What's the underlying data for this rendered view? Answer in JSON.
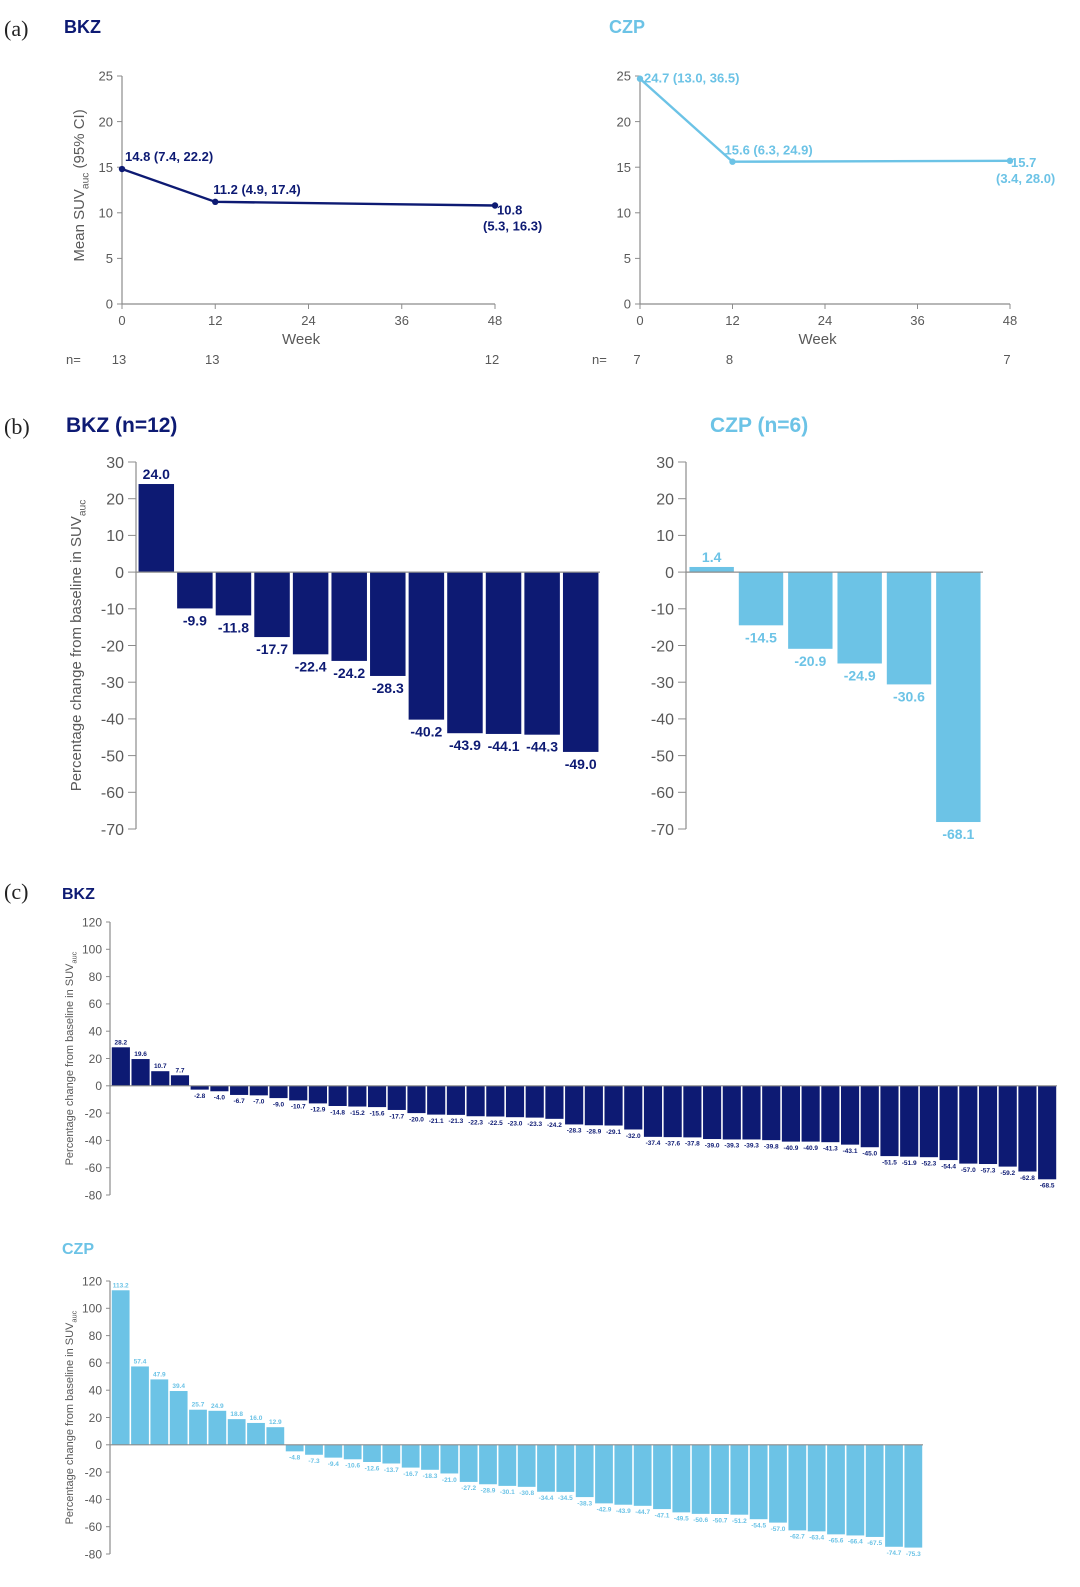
{
  "colors": {
    "bkz": "#0d1a73",
    "czp": "#6cc3e6",
    "axis": "#8c8c8c",
    "text": "#595959"
  },
  "panel_labels": {
    "a": "(a)",
    "b": "(b)",
    "c": "(c)"
  },
  "chart_data": [
    {
      "id": "a_bkz",
      "type": "line",
      "series_color": "bkz",
      "title": "BKZ",
      "xlabel": "Week",
      "ylabel_main": "Mean SUV",
      "ylabel_sub": "auc",
      "ylabel_tail": " (95% CI)",
      "xlim": [
        0,
        48
      ],
      "xticks": [
        0,
        12,
        24,
        36,
        48
      ],
      "ylim": [
        0,
        25
      ],
      "yticks": [
        0,
        5,
        10,
        15,
        20,
        25
      ],
      "x": [
        0,
        12,
        48
      ],
      "y": [
        14.8,
        11.2,
        10.8
      ],
      "labels": [
        "14.8 (7.4, 22.2)",
        "11.2 (4.9, 17.4)",
        "10.8\n(5.3, 16.3)"
      ],
      "n_label": "n=",
      "n_x": [
        0,
        12,
        48
      ],
      "n_values": [
        "13",
        "13",
        "12"
      ]
    },
    {
      "id": "a_czp",
      "type": "line",
      "series_color": "czp",
      "title": "CZP",
      "xlabel": "Week",
      "xlim": [
        0,
        48
      ],
      "xticks": [
        0,
        12,
        24,
        36,
        48
      ],
      "ylim": [
        0,
        25
      ],
      "yticks": [
        0,
        5,
        10,
        15,
        20,
        25
      ],
      "x": [
        0,
        12,
        48
      ],
      "y": [
        24.7,
        15.6,
        15.7
      ],
      "labels": [
        "24.7 (13.0, 36.5)",
        "15.6 (6.3, 24.9)",
        "15.7\n(3.4, 28.0)"
      ],
      "n_label": "n=",
      "n_x": [
        0,
        12,
        48
      ],
      "n_values": [
        "7",
        "8",
        "7"
      ]
    },
    {
      "id": "b_bkz",
      "type": "bar",
      "series_color": "bkz",
      "title": "BKZ (n=12)",
      "ylabel_main": "Percentage change from baseline in SUV",
      "ylabel_sub": "auc",
      "ylim": [
        -70,
        30
      ],
      "yticks": [
        30,
        20,
        10,
        0,
        -10,
        -20,
        -30,
        -40,
        -50,
        -60,
        -70
      ],
      "values": [
        24.0,
        -9.9,
        -11.8,
        -17.7,
        -22.4,
        -24.2,
        -28.3,
        -40.2,
        -43.9,
        -44.1,
        -44.3,
        -49.0
      ]
    },
    {
      "id": "b_czp",
      "type": "bar",
      "series_color": "czp",
      "title": "CZP (n=6)",
      "ylim": [
        -70,
        30
      ],
      "yticks": [
        30,
        20,
        10,
        0,
        -10,
        -20,
        -30,
        -40,
        -50,
        -60,
        -70
      ],
      "values": [
        1.4,
        -14.5,
        -20.9,
        -24.9,
        -30.6,
        -68.1
      ]
    },
    {
      "id": "c_bkz",
      "type": "bar",
      "series_color": "bkz",
      "title": "BKZ",
      "ylabel_main": "Percentage change from baseline in SUV",
      "ylabel_sub": "auc",
      "ylim": [
        -80,
        120
      ],
      "yticks": [
        120,
        100,
        80,
        60,
        40,
        20,
        0,
        -20,
        -40,
        -60,
        -80
      ],
      "values": [
        28.2,
        19.6,
        10.7,
        7.7,
        -2.8,
        -4.0,
        -6.7,
        -7.0,
        -9.0,
        -10.7,
        -12.9,
        -14.8,
        -15.2,
        -15.6,
        -17.7,
        -20.0,
        -21.1,
        -21.3,
        -22.3,
        -22.5,
        -23.0,
        -23.3,
        -24.2,
        -28.3,
        -28.9,
        -29.1,
        -32.0,
        -37.4,
        -37.6,
        -37.8,
        -39.0,
        -39.3,
        -39.3,
        -39.8,
        -40.9,
        -40.9,
        -41.3,
        -43.1,
        -45.0,
        -51.5,
        -51.9,
        -52.3,
        -54.4,
        -57.0,
        -57.3,
        -59.2,
        -62.8,
        -68.5
      ]
    },
    {
      "id": "c_czp",
      "type": "bar",
      "series_color": "czp",
      "title": "CZP",
      "ylabel_main": "Percentage change from baseline in SUV",
      "ylabel_sub": "auc",
      "ylim": [
        -80,
        120
      ],
      "yticks": [
        120,
        100,
        80,
        60,
        40,
        20,
        0,
        -20,
        -40,
        -60,
        -80
      ],
      "values": [
        113.2,
        57.4,
        47.9,
        39.4,
        25.7,
        24.9,
        18.8,
        16.0,
        12.9,
        -4.8,
        -7.3,
        -9.4,
        -10.6,
        -12.6,
        -13.7,
        -16.7,
        -18.3,
        -21.0,
        -27.2,
        -28.9,
        -30.1,
        -30.8,
        -34.4,
        -34.5,
        -38.3,
        -42.9,
        -43.9,
        -44.7,
        -47.1,
        -49.5,
        -50.6,
        -50.7,
        -51.2,
        -54.5,
        -57.0,
        -62.7,
        -63.4,
        -65.6,
        -66.4,
        -67.5,
        -74.7,
        -75.3
      ]
    }
  ]
}
